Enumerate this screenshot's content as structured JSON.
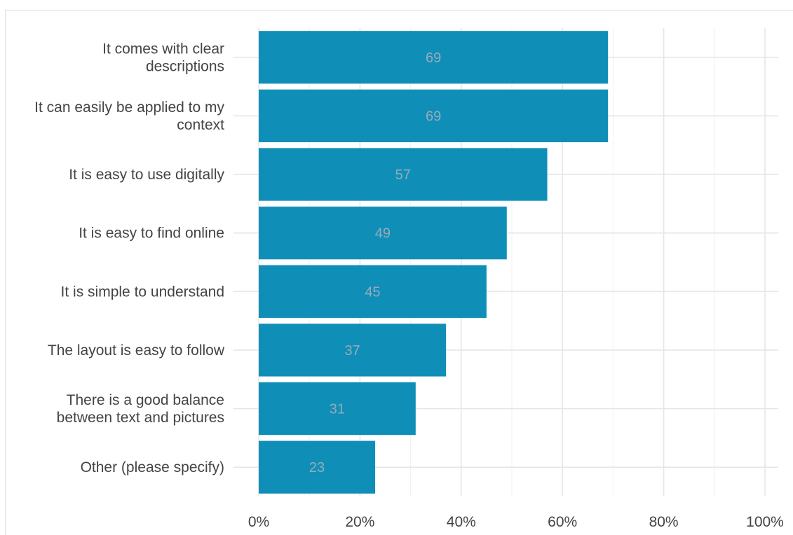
{
  "chart_data": {
    "type": "bar",
    "orientation": "horizontal",
    "categories": [
      [
        "It comes with clear",
        "descriptions"
      ],
      [
        "It can easily be applied to my",
        "context"
      ],
      [
        "It is easy to use digitally"
      ],
      [
        "It is easy to find online"
      ],
      [
        "It is simple to understand"
      ],
      [
        "The layout is easy to follow"
      ],
      [
        "There is a good balance",
        "between text and pictures"
      ],
      [
        "Other (please specify)"
      ]
    ],
    "values": [
      69,
      69,
      57,
      49,
      45,
      37,
      31,
      23
    ],
    "data_labels": [
      "69",
      "69",
      "57",
      "49",
      "45",
      "37",
      "31",
      "23"
    ],
    "xlim": [
      0,
      100
    ],
    "x_ticks": [
      0,
      20,
      40,
      60,
      80,
      100
    ],
    "x_tick_labels": [
      "0%",
      "20%",
      "40%",
      "60%",
      "80%",
      "100%"
    ],
    "title": "",
    "xlabel": "",
    "ylabel": "",
    "grid": true,
    "legend": "none",
    "colors": {
      "bar": "#0f8fb8",
      "data_label": "#9aaab8",
      "text": "#444444",
      "grid": "#e6e6e6"
    }
  }
}
